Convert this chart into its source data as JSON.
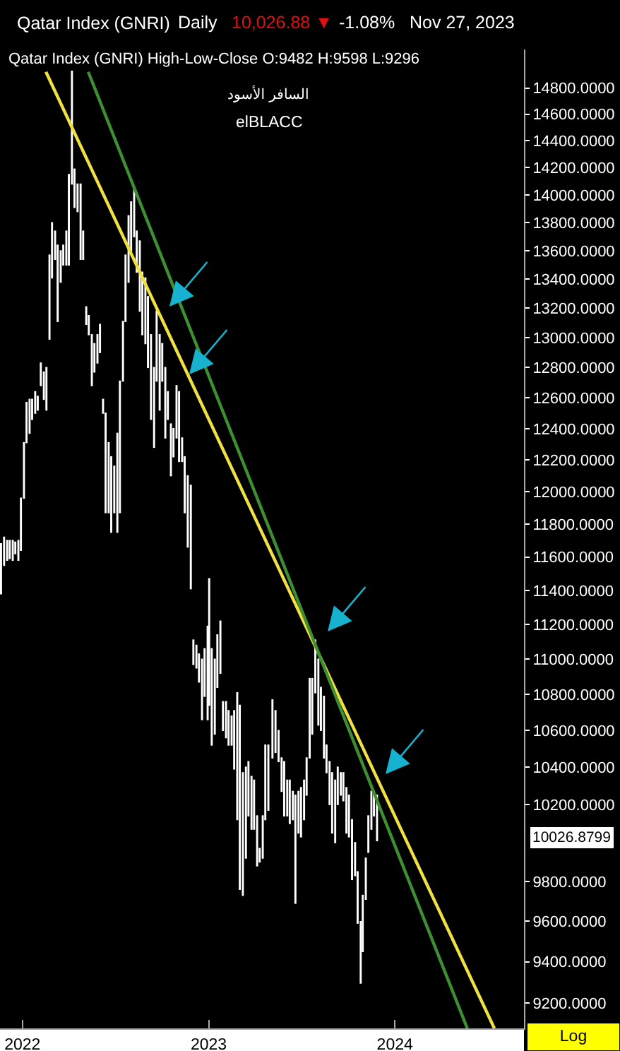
{
  "chart_data": {
    "type": "bar",
    "title": "Qatar Index (GNRI)",
    "subtitle": "Qatar Index (GNRI) High-Low-Close O:9482 H:9598 L:9296",
    "annotations": [
      "Daily",
      "10,026.88 ▼",
      "-1.08%",
      "Nov 27, 2023",
      "السافر الأسود",
      "elBLACC",
      "Log",
      "10026.8799"
    ],
    "x": [
      "2021-11-20",
      "2021-11-26",
      "2021-12-02",
      "2021-12-07",
      "2021-12-13",
      "2021-12-18",
      "2021-12-24",
      "2021-12-29",
      "2022-01-04",
      "2022-01-09",
      "2022-01-15",
      "2022-01-20",
      "2022-01-26",
      "2022-01-31",
      "2022-02-06",
      "2022-02-12",
      "2022-02-17",
      "2022-02-23",
      "2022-02-28",
      "2022-03-06",
      "2022-03-11",
      "2022-03-17",
      "2022-03-22",
      "2022-03-28",
      "2022-04-02",
      "2022-04-08",
      "2022-04-13",
      "2022-04-19",
      "2022-04-25",
      "2022-04-30",
      "2022-05-06",
      "2022-05-11",
      "2022-05-17",
      "2022-05-22",
      "2022-05-28",
      "2022-06-02",
      "2022-06-08",
      "2022-06-13",
      "2022-06-19",
      "2022-06-24",
      "2022-06-30",
      "2022-07-06",
      "2022-07-11",
      "2022-07-17",
      "2022-07-22",
      "2022-07-28",
      "2022-08-02",
      "2022-08-08",
      "2022-08-13",
      "2022-08-19",
      "2022-08-24",
      "2022-08-30",
      "2022-09-04",
      "2022-09-10",
      "2022-09-16",
      "2022-09-21",
      "2022-09-27",
      "2022-10-02",
      "2022-10-08",
      "2022-10-13",
      "2022-10-19",
      "2022-10-24",
      "2022-10-30",
      "2022-11-04",
      "2022-11-10",
      "2022-11-15",
      "2022-11-21",
      "2022-11-27",
      "2022-12-02",
      "2022-12-08",
      "2022-12-13",
      "2022-12-19",
      "2022-12-24",
      "2022-12-30",
      "2023-01-02",
      "2023-01-07",
      "2023-01-13",
      "2023-01-18",
      "2023-01-24",
      "2023-01-29",
      "2023-02-04",
      "2023-02-09",
      "2023-02-15",
      "2023-02-20",
      "2023-02-26",
      "2023-03-03",
      "2023-03-09",
      "2023-03-15",
      "2023-03-20",
      "2023-03-26",
      "2023-03-31",
      "2023-04-06",
      "2023-04-11",
      "2023-04-17",
      "2023-04-22",
      "2023-04-28",
      "2023-05-06",
      "2023-05-12",
      "2023-05-18",
      "2023-05-24",
      "2023-05-29",
      "2023-06-04",
      "2023-06-09",
      "2023-06-15",
      "2023-06-20",
      "2023-06-26",
      "2023-07-01",
      "2023-07-07",
      "2023-07-12",
      "2023-07-18",
      "2023-07-23",
      "2023-07-29",
      "2023-08-04",
      "2023-08-09",
      "2023-08-15",
      "2023-08-20",
      "2023-08-26",
      "2023-08-31",
      "2023-09-06",
      "2023-09-11",
      "2023-09-17",
      "2023-09-22",
      "2023-09-28",
      "2023-10-03",
      "2023-10-09",
      "2023-10-15",
      "2023-10-20",
      "2023-10-26",
      "2023-10-30",
      "2023-11-05",
      "2023-11-10",
      "2023-11-16",
      "2023-11-21",
      "2023-11-27"
    ],
    "series": [
      {
        "color": "#ffffff",
        "values": [
          300,
          170,
          120,
          110,
          120,
          70,
          120,
          320,
          350,
          260,
          220,
          130,
          140,
          90,
          150,
          180,
          280,
          580,
          390,
          200,
          530,
          220,
          140,
          240,
          650,
          850,
          280,
          200,
          540,
          200,
          120,
          130,
          340,
          190,
          190,
          190,
          90,
          630,
          440,
          470,
          290,
          620,
          840,
          400,
          460,
          470,
          350,
          350,
          290,
          490,
          430,
          450,
          480,
          560,
          520,
          470,
          500,
          250,
          460,
          180,
          330,
          180,
          340,
          450,
          150,
          350,
          440,
          630,
          140,
          130,
          160,
          340,
          270,
          530,
          730,
          540,
          420,
          300,
          300,
          160,
          200,
          190,
          160,
          320,
          690,
          980,
          640,
          480,
          290,
          280,
          260,
          260,
          70,
          220,
          400,
          350,
          320,
          230,
          170,
          180,
          290,
          190,
          230,
          150,
          560,
          220,
          260,
          210,
          200,
          440,
          310,
          300,
          370,
          240,
          340,
          150,
          230,
          320,
          330,
          200,
          120,
          150,
          240,
          220,
          310,
          170,
          260,
          302,
          280,
          210,
          190,
          200,
          130,
          240
        ],
        "base": [
          11380,
          11550,
          11580,
          11590,
          11580,
          11620,
          11580,
          11640,
          11960,
          12310,
          12370,
          12460,
          12500,
          12520,
          12680,
          12590,
          12520,
          12990,
          13410,
          13540,
          13110,
          13380,
          13500,
          13500,
          13500,
          14080,
          13910,
          13880,
          13540,
          13540,
          13090,
          13020,
          12680,
          12770,
          12830,
          12900,
          12500,
          11870,
          11870,
          11750,
          11870,
          11750,
          11870,
          12710,
          13110,
          13380,
          13600,
          13700,
          13450,
          13180,
          13020,
          12960,
          12800,
          12460,
          12280,
          12710,
          12520,
          12710,
          12340,
          12460,
          12100,
          12220,
          12340,
          12190,
          12190,
          11870,
          11660,
          11410,
          10970,
          10950,
          10870,
          10660,
          10790,
          10660,
          10740,
          10520,
          10580,
          10840,
          10920,
          10600,
          10560,
          10520,
          10520,
          10390,
          10120,
          9760,
          9730,
          9920,
          10140,
          10070,
          10070,
          9880,
          9900,
          9920,
          10120,
          10170,
          10450,
          10480,
          10430,
          10270,
          10140,
          10140,
          10100,
          10120,
          9690,
          10050,
          10030,
          10120,
          10250,
          10450,
          10580,
          10810,
          10630,
          10600,
          10450,
          10370,
          10200,
          10050,
          10000,
          10200,
          10250,
          10220,
          10050,
          10030,
          9810,
          9830,
          9590,
          9296,
          9450,
          9710,
          9950,
          10070,
          10140,
          10010
        ]
      },
      {
        "type": "line",
        "color": "#f0e040",
        "x": [
          "2022-02-16",
          "2024-07-14"
        ],
        "values": [
          14925,
          9080
        ]
      },
      {
        "type": "line",
        "color": "#3d8f32",
        "x": [
          "2022-05-10",
          "2024-05-22"
        ],
        "values": [
          14925,
          9080
        ]
      }
    ],
    "xlim": [
      "2021-11-18",
      "2024-09-10"
    ],
    "xticks": [
      {
        "value": "2022-01-01",
        "label": "2022"
      },
      {
        "value": "2023-01-01",
        "label": "2023"
      },
      {
        "value": "2024-01-01",
        "label": "2024"
      }
    ],
    "ylim": [
      9080,
      15100
    ],
    "yticks": [
      {
        "value": 9200,
        "label": "9200.0000"
      },
      {
        "value": 9400,
        "label": "9400.0000"
      },
      {
        "value": 9600,
        "label": "9600.0000"
      },
      {
        "value": 9800,
        "label": "9800.0000"
      },
      {
        "value": 10200,
        "label": "10200.0000"
      },
      {
        "value": 10400,
        "label": "10400.0000"
      },
      {
        "value": 10600,
        "label": "10600.0000"
      },
      {
        "value": 10800,
        "label": "10800.0000"
      },
      {
        "value": 11000,
        "label": "11000.0000"
      },
      {
        "value": 11200,
        "label": "11200.0000"
      },
      {
        "value": 11400,
        "label": "11400.0000"
      },
      {
        "value": 11600,
        "label": "11600.0000"
      },
      {
        "value": 11800,
        "label": "11800.0000"
      },
      {
        "value": 12000,
        "label": "12000.0000"
      },
      {
        "value": 12200,
        "label": "12200.0000"
      },
      {
        "value": 12400,
        "label": "12400.0000"
      },
      {
        "value": 12600,
        "label": "12600.0000"
      },
      {
        "value": 12800,
        "label": "12800.0000"
      },
      {
        "value": 13000,
        "label": "13000.0000"
      },
      {
        "value": 13200,
        "label": "13200.0000"
      },
      {
        "value": 13400,
        "label": "13400.0000"
      },
      {
        "value": 13600,
        "label": "13600.0000"
      },
      {
        "value": 13800,
        "label": "13800.0000"
      },
      {
        "value": 14000,
        "label": "14000.0000"
      },
      {
        "value": 14200,
        "label": "14200.0000"
      },
      {
        "value": 14400,
        "label": "14400.0000"
      },
      {
        "value": 14600,
        "label": "14600.0000"
      },
      {
        "value": 14800,
        "label": "14800.0000"
      }
    ],
    "log": true
  }
}
